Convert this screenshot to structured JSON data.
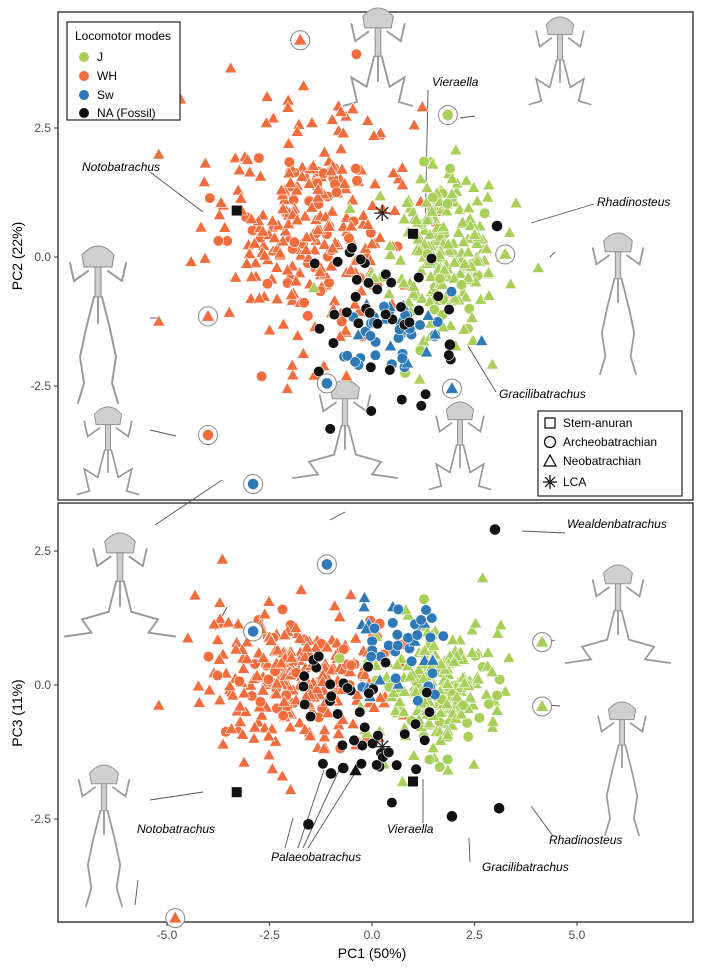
{
  "colors": {
    "J": "#a8cf5a",
    "WH": "#f26d3d",
    "Sw": "#2f79b7",
    "NA": "#111111",
    "frame": "#222222"
  },
  "legend_modes": {
    "title": "Locomotor modes",
    "items": [
      {
        "key": "J",
        "label": "J"
      },
      {
        "key": "WH",
        "label": "WH"
      },
      {
        "key": "Sw",
        "label": "Sw"
      },
      {
        "key": "NA",
        "label": "NA (Fossil)"
      }
    ]
  },
  "legend_shapes": {
    "items": [
      {
        "shape": "square",
        "label": "Stem-anuran"
      },
      {
        "shape": "circle",
        "label": "Archeobatrachian"
      },
      {
        "shape": "triangle",
        "label": "Neobatrachian"
      },
      {
        "shape": "asterisk",
        "label": "LCA"
      }
    ]
  },
  "chart_data": [
    {
      "type": "scatter",
      "xlabel": "PC1 (50%)",
      "ylabel": "PC2 (22%)",
      "xlim": [
        -6.1,
        6.5
      ],
      "ylim": [
        -4.7,
        4.7
      ],
      "xticks": [
        -5.0,
        -2.5,
        0.0,
        2.5,
        5.0
      ],
      "xtick_labels": [
        "-5.0",
        "-2.5",
        "0.0",
        "2.5",
        "5.0"
      ],
      "yticks": [
        -2.5,
        0.0,
        2.5
      ],
      "ytick_labels": [
        "-2.5",
        "0.0",
        "2.5"
      ],
      "cloud_regions": [
        {
          "mode": "WH",
          "center": [
            -1.6,
            0.6
          ],
          "spread": [
            1.6,
            1.6
          ],
          "n": 280,
          "shapes": {
            "triangle": 0.8,
            "circle": 0.2
          }
        },
        {
          "mode": "J",
          "center": [
            1.6,
            0.1
          ],
          "spread": [
            1.0,
            1.1
          ],
          "n": 220,
          "shapes": {
            "triangle": 0.85,
            "circle": 0.15
          }
        },
        {
          "mode": "Sw",
          "center": [
            0.6,
            -1.5
          ],
          "spread": [
            1.0,
            0.6
          ],
          "n": 45,
          "shapes": {
            "circle": 0.65,
            "triangle": 0.35
          }
        },
        {
          "mode": "NA",
          "center": [
            0.0,
            -0.8
          ],
          "spread": [
            1.2,
            1.0
          ],
          "n": 40,
          "shapes": {
            "circle": 1.0
          }
        }
      ],
      "highlighted": [
        {
          "mode": "WH",
          "shape": "triangle",
          "x": -1.75,
          "y": 4.2
        },
        {
          "mode": "J",
          "shape": "circle",
          "x": 1.85,
          "y": 2.75
        },
        {
          "mode": "J",
          "shape": "triangle",
          "x": 3.25,
          "y": 0.05
        },
        {
          "mode": "WH",
          "shape": "triangle",
          "x": -4.0,
          "y": -1.15
        },
        {
          "mode": "WH",
          "shape": "circle",
          "x": -4.0,
          "y": -3.45
        },
        {
          "mode": "Sw",
          "shape": "circle",
          "x": -2.9,
          "y": -4.4
        },
        {
          "mode": "Sw",
          "shape": "circle",
          "x": -1.1,
          "y": -2.45
        },
        {
          "mode": "Sw",
          "shape": "triangle",
          "x": 1.95,
          "y": -2.55
        }
      ],
      "fossils": [
        {
          "name": "Notobatrachus",
          "shape": "square",
          "x": -3.3,
          "y": 0.9
        },
        {
          "name": "Vieraella",
          "shape": "square",
          "x": 1.0,
          "y": 0.45
        },
        {
          "name": "Rhadinosteus",
          "shape": "circle",
          "x": 3.05,
          "y": 0.6
        },
        {
          "name": "Gracilibatrachus",
          "shape": "circle",
          "x": 1.9,
          "y": -1.7
        }
      ],
      "lca": {
        "label": "LCA",
        "x": 0.25,
        "y": 0.85
      },
      "annotations": [
        "Notobatrachus",
        "Vieraella",
        "Rhadinosteus",
        "Gracilibatrachus"
      ]
    },
    {
      "type": "scatter",
      "xlabel": "PC1 (50%)",
      "ylabel": "PC3 (11%)",
      "xlim": [
        -6.1,
        6.5
      ],
      "ylim": [
        -4.8,
        3.5
      ],
      "xticks": [
        -5.0,
        -2.5,
        0.0,
        2.5,
        5.0
      ],
      "xtick_labels": [
        "-5.0",
        "-2.5",
        "0.0",
        "2.5",
        "5.0"
      ],
      "yticks": [
        -2.5,
        0.0,
        2.5
      ],
      "ytick_labels": [
        "-2.5",
        "0.0",
        "2.5"
      ],
      "cloud_regions": [
        {
          "mode": "WH",
          "center": [
            -1.8,
            0.1
          ],
          "spread": [
            1.6,
            0.85
          ],
          "n": 280,
          "shapes": {
            "triangle": 0.85,
            "circle": 0.15
          }
        },
        {
          "mode": "J",
          "center": [
            1.7,
            -0.05
          ],
          "spread": [
            1.0,
            0.8
          ],
          "n": 220,
          "shapes": {
            "triangle": 0.9,
            "circle": 0.1
          }
        },
        {
          "mode": "Sw",
          "center": [
            0.6,
            0.6
          ],
          "spread": [
            0.8,
            0.7
          ],
          "n": 45,
          "shapes": {
            "circle": 0.7,
            "triangle": 0.3
          }
        },
        {
          "mode": "NA",
          "center": [
            0.0,
            -0.6
          ],
          "spread": [
            1.2,
            0.8
          ],
          "n": 40,
          "shapes": {
            "circle": 1.0
          }
        }
      ],
      "highlighted": [
        {
          "mode": "Sw",
          "shape": "circle",
          "x": -1.1,
          "y": 2.25
        },
        {
          "mode": "Sw",
          "shape": "circle",
          "x": -2.9,
          "y": 1.0
        },
        {
          "mode": "J",
          "shape": "triangle",
          "x": 4.15,
          "y": 0.8
        },
        {
          "mode": "J",
          "shape": "triangle",
          "x": 4.15,
          "y": -0.4
        },
        {
          "mode": "WH",
          "shape": "triangle",
          "x": -4.8,
          "y": -4.35
        }
      ],
      "fossils": [
        {
          "name": "Wealdenbatrachus",
          "shape": "circle",
          "x": 3.0,
          "y": 2.9
        },
        {
          "name": "Notobatrachus",
          "shape": "square",
          "x": -3.3,
          "y": -2.0
        },
        {
          "name": "Vieraella",
          "shape": "square",
          "x": 1.0,
          "y": -1.8
        },
        {
          "name": "Rhadinosteus",
          "shape": "circle",
          "x": 3.1,
          "y": -2.3
        },
        {
          "name": "Gracilibatrachus",
          "shape": "circle",
          "x": 1.95,
          "y": -2.45
        },
        {
          "name": "Palaeobatrachus",
          "shape": "circle",
          "x": -1.55,
          "y": -2.6
        },
        {
          "name": "Palaeobatrachus",
          "shape": "circle",
          "x": -1.0,
          "y": -1.65
        },
        {
          "name": "Palaeobatrachus",
          "shape": "circle",
          "x": -0.7,
          "y": -1.55
        },
        {
          "name": "Palaeobatrachus",
          "shape": "triangle",
          "x": -0.4,
          "y": -1.6
        }
      ],
      "lca": {
        "label": "LCA",
        "x": 0.25,
        "y": -1.15
      },
      "annotations": [
        "Wealdenbatrachus",
        "Notobatrachus",
        "Palaeobatrachus",
        "Vieraella",
        "Gracilibatrachus",
        "Rhadinosteus"
      ]
    }
  ]
}
